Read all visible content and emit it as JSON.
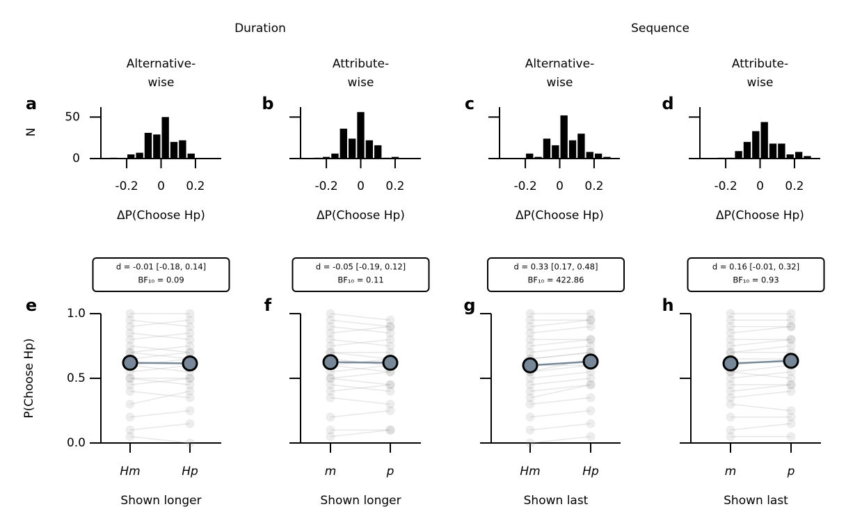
{
  "groups": [
    {
      "title": "Duration"
    },
    {
      "title": "Sequence"
    }
  ],
  "chart_data": [
    {
      "type": "histogram",
      "panel": "a",
      "title": [
        "Alternative-",
        "wise"
      ],
      "ylabel": "N",
      "xlabel": "ΔP(Choose Hp)",
      "bins": [
        -0.3,
        -0.25,
        -0.2,
        -0.15,
        -0.1,
        -0.05,
        0,
        0.05,
        0.1,
        0.15,
        0.2
      ],
      "counts": [
        1,
        0,
        5,
        7,
        31,
        29,
        50,
        20,
        22,
        6
      ],
      "color": "#000000",
      "xlim": [
        -0.35,
        0.35
      ],
      "xticks": [
        -0.2,
        0,
        0.2
      ],
      "ylim": [
        0,
        62
      ],
      "yticks": [
        0,
        50
      ],
      "show_ytick_labels": true
    },
    {
      "type": "histogram",
      "panel": "b",
      "title": [
        "Attribute-",
        "wise"
      ],
      "xlabel": "ΔP(Choose Hp)",
      "bins": [
        -0.275,
        -0.225,
        -0.175,
        -0.125,
        -0.075,
        -0.025,
        0.025,
        0.075,
        0.125,
        0.175,
        0.225
      ],
      "counts": [
        1,
        2,
        6,
        36,
        24,
        56,
        22,
        16,
        1,
        2
      ],
      "color": "#000000",
      "xlim": [
        -0.35,
        0.35
      ],
      "xticks": [
        -0.2,
        0,
        0.2
      ],
      "ylim": [
        0,
        62
      ],
      "yticks": [
        0,
        50
      ],
      "show_ytick_labels": false
    },
    {
      "type": "histogram",
      "panel": "c",
      "title": [
        "Alternative-",
        "wise"
      ],
      "xlabel": "ΔP(Choose Hp)",
      "bins": [
        -0.2,
        -0.15,
        -0.1,
        -0.05,
        0,
        0.05,
        0.1,
        0.15,
        0.2,
        0.25,
        0.3
      ],
      "counts": [
        6,
        2,
        24,
        16,
        52,
        22,
        30,
        8,
        6,
        2
      ],
      "color": "#000000",
      "xlim": [
        -0.35,
        0.35
      ],
      "xticks": [
        -0.2,
        0,
        0.2
      ],
      "ylim": [
        0,
        62
      ],
      "yticks": [
        0,
        50
      ],
      "show_ytick_labels": false
    },
    {
      "type": "histogram",
      "panel": "d",
      "title": [
        "Attribute-",
        "wise"
      ],
      "xlabel": "ΔP(Choose Hp)",
      "bins": [
        -0.25,
        -0.2,
        -0.15,
        -0.1,
        -0.05,
        0,
        0.05,
        0.1,
        0.15,
        0.2,
        0.25,
        0.3
      ],
      "counts": [
        1,
        1,
        9,
        20,
        33,
        44,
        18,
        18,
        5,
        8,
        3
      ],
      "color": "#000000",
      "xlim": [
        -0.35,
        0.35
      ],
      "xticks": [
        -0.2,
        0,
        0.2
      ],
      "ylim": [
        0,
        62
      ],
      "yticks": [
        0,
        50
      ],
      "show_ytick_labels": false
    },
    {
      "type": "paired",
      "panel": "e",
      "stats": [
        "d = -0.01 [-0.18, 0.14]",
        "BF₁₀ = 0.09"
      ],
      "ylabel": "P(Choose Hp)",
      "categories": [
        "Hm",
        "Hp"
      ],
      "xlabel": "Shown longer",
      "values": [
        0.62,
        0.615
      ],
      "color": "#778899",
      "subjects": [
        [
          1,
          1
        ],
        [
          0.95,
          0.9
        ],
        [
          0.9,
          0.95
        ],
        [
          0.85,
          0.8
        ],
        [
          0.8,
          0.85
        ],
        [
          0.75,
          0.7
        ],
        [
          0.7,
          0.75
        ],
        [
          0.7,
          0.65
        ],
        [
          0.65,
          0.7
        ],
        [
          0.6,
          0.55
        ],
        [
          0.6,
          0.65
        ],
        [
          0.55,
          0.6
        ],
        [
          0.5,
          0.5
        ],
        [
          0.5,
          0.45
        ],
        [
          0.45,
          0.5
        ],
        [
          0.4,
          0.35
        ],
        [
          0.3,
          0.4
        ],
        [
          0.2,
          0.25
        ],
        [
          0.1,
          0.15
        ],
        [
          0.05,
          0
        ]
      ],
      "ylim": [
        0,
        1
      ],
      "yticks": [
        {
          "value": 0,
          "label": "0.0"
        },
        {
          "value": 0.5,
          "label": "0.5"
        },
        {
          "value": 1,
          "label": "1.0"
        }
      ],
      "show_ytick_labels": true
    },
    {
      "type": "paired",
      "panel": "f",
      "stats": [
        "d = -0.05 [-0.19, 0.12]",
        "BF₁₀ = 0.11"
      ],
      "categories": [
        "m",
        "p"
      ],
      "xlabel": "Shown longer",
      "values": [
        0.625,
        0.62
      ],
      "color": "#778899",
      "subjects": [
        [
          1,
          0.95
        ],
        [
          0.95,
          0.9
        ],
        [
          0.9,
          0.85
        ],
        [
          0.85,
          0.9
        ],
        [
          0.8,
          0.75
        ],
        [
          0.75,
          0.8
        ],
        [
          0.7,
          0.7
        ],
        [
          0.7,
          0.65
        ],
        [
          0.65,
          0.6
        ],
        [
          0.6,
          0.65
        ],
        [
          0.6,
          0.55
        ],
        [
          0.55,
          0.6
        ],
        [
          0.5,
          0.45
        ],
        [
          0.5,
          0.55
        ],
        [
          0.45,
          0.4
        ],
        [
          0.4,
          0.45
        ],
        [
          0.35,
          0.3
        ],
        [
          0.2,
          0.25
        ],
        [
          0.1,
          0.1
        ],
        [
          0.05,
          0.1
        ]
      ],
      "ylim": [
        0,
        1
      ],
      "yticks": [
        {
          "value": 0,
          "label": "0.0"
        },
        {
          "value": 0.5,
          "label": "0.5"
        },
        {
          "value": 1,
          "label": "1.0"
        }
      ],
      "show_ytick_labels": false
    },
    {
      "type": "paired",
      "panel": "g",
      "stats": [
        "d = 0.33 [0.17, 0.48]",
        "BF₁₀ = 422.86"
      ],
      "categories": [
        "Hm",
        "Hp"
      ],
      "xlabel": "Shown last",
      "values": [
        0.6,
        0.63
      ],
      "color": "#778899",
      "subjects": [
        [
          1,
          1
        ],
        [
          0.95,
          0.95
        ],
        [
          0.9,
          0.95
        ],
        [
          0.85,
          0.9
        ],
        [
          0.8,
          0.8
        ],
        [
          0.75,
          0.8
        ],
        [
          0.7,
          0.75
        ],
        [
          0.65,
          0.7
        ],
        [
          0.65,
          0.7
        ],
        [
          0.6,
          0.6
        ],
        [
          0.55,
          0.65
        ],
        [
          0.55,
          0.6
        ],
        [
          0.5,
          0.55
        ],
        [
          0.45,
          0.5
        ],
        [
          0.4,
          0.45
        ],
        [
          0.35,
          0.45
        ],
        [
          0.3,
          0.35
        ],
        [
          0.2,
          0.25
        ],
        [
          0.1,
          0.15
        ],
        [
          0,
          0.05
        ]
      ],
      "ylim": [
        0,
        1
      ],
      "yticks": [
        {
          "value": 0,
          "label": "0.0"
        },
        {
          "value": 0.5,
          "label": "0.5"
        },
        {
          "value": 1,
          "label": "1.0"
        }
      ],
      "show_ytick_labels": false
    },
    {
      "type": "paired",
      "panel": "h",
      "stats": [
        "d = 0.16 [-0.01, 0.32]",
        "BF₁₀ = 0.93"
      ],
      "categories": [
        "m",
        "p"
      ],
      "xlabel": "Shown last",
      "values": [
        0.615,
        0.635
      ],
      "color": "#778899",
      "subjects": [
        [
          1,
          1
        ],
        [
          0.95,
          0.95
        ],
        [
          0.9,
          0.9
        ],
        [
          0.85,
          0.9
        ],
        [
          0.8,
          0.8
        ],
        [
          0.75,
          0.8
        ],
        [
          0.7,
          0.7
        ],
        [
          0.7,
          0.75
        ],
        [
          0.65,
          0.65
        ],
        [
          0.6,
          0.65
        ],
        [
          0.55,
          0.6
        ],
        [
          0.55,
          0.5
        ],
        [
          0.5,
          0.55
        ],
        [
          0.45,
          0.45
        ],
        [
          0.4,
          0.45
        ],
        [
          0.35,
          0.4
        ],
        [
          0.3,
          0.25
        ],
        [
          0.2,
          0.2
        ],
        [
          0.1,
          0.15
        ],
        [
          0.05,
          0.05
        ]
      ],
      "ylim": [
        0,
        1
      ],
      "yticks": [
        {
          "value": 0,
          "label": "0.0"
        },
        {
          "value": 0.5,
          "label": "0.5"
        },
        {
          "value": 1,
          "label": "1.0"
        }
      ],
      "show_ytick_labels": false
    }
  ]
}
